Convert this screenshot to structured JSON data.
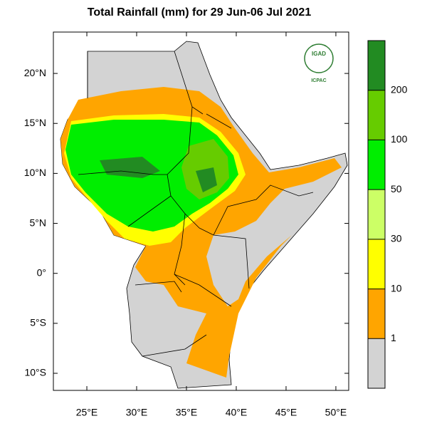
{
  "chart_data": {
    "type": "map",
    "title": "Total Rainfall (mm) for 29 Jun-06 Jul 2021",
    "xlim": [
      21.64,
      51.29
    ],
    "ylim": [
      -11.71,
      24.14
    ],
    "xticks": [
      {
        "value": 25,
        "label": "25°E"
      },
      {
        "value": 30,
        "label": "30°E"
      },
      {
        "value": 35,
        "label": "35°E"
      },
      {
        "value": 40,
        "label": "40°E"
      },
      {
        "value": 45,
        "label": "45°E"
      },
      {
        "value": 50,
        "label": "50°E"
      }
    ],
    "yticks": [
      {
        "value": 20,
        "label": "20°N"
      },
      {
        "value": 15,
        "label": "15°N"
      },
      {
        "value": 10,
        "label": "10°N"
      },
      {
        "value": 5,
        "label": "5°N"
      },
      {
        "value": 0,
        "label": "0°"
      },
      {
        "value": -5,
        "label": "5°S"
      },
      {
        "value": -10,
        "label": "10°S"
      }
    ],
    "colorbar": {
      "levels": [
        1,
        10,
        30,
        50,
        100,
        200
      ],
      "colors": [
        "#d3d3d3",
        "#ffa500",
        "#ffff00",
        "#ccff66",
        "#00ee00",
        "#66cc00",
        "#228b22"
      ]
    },
    "logo": {
      "name": "IGAD",
      "org": "ICPAC"
    }
  }
}
